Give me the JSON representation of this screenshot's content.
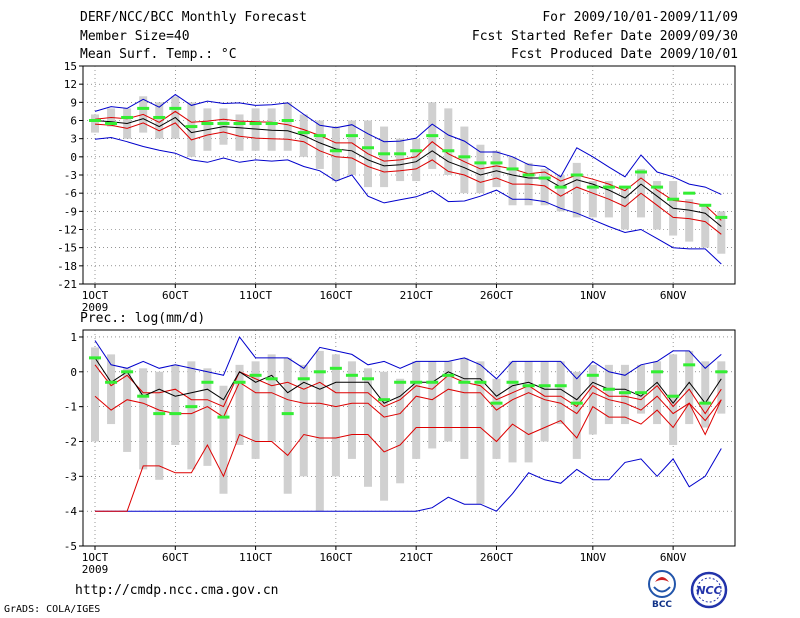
{
  "header": {
    "title": "DERF/NCC/BCC Monthly Forecast",
    "member_size": "Member Size=40",
    "variable": "Mean Surf. Temp.: °C",
    "period": "For 2009/10/01-2009/11/09",
    "fcst_started": "Fcst Started Refer Date 2009/09/30",
    "fcst_produced": "Fcst Produced Date 2009/10/01"
  },
  "footer": {
    "url": "http://cmdp.ncc.cma.gov.cn",
    "credit": "GrADS: COLA/IGES",
    "logo1_text": "BCC",
    "logo2_text": "NCC"
  },
  "colors": {
    "box": "#d0d0d0",
    "median": "#33ee33",
    "mean": "#000000",
    "inner": "#dd0000",
    "outer": "#0000cc",
    "grid": "#555555"
  },
  "chart_data": [
    {
      "type": "line",
      "title": "Mean Surf. Temp.: °C",
      "x": [
        1,
        2,
        3,
        4,
        5,
        6,
        7,
        8,
        9,
        10,
        11,
        12,
        13,
        14,
        15,
        16,
        17,
        18,
        19,
        20,
        21,
        22,
        23,
        24,
        25,
        26,
        27,
        28,
        29,
        30,
        31,
        32,
        33,
        34,
        35,
        36,
        37,
        38,
        39,
        40
      ],
      "x_ticks": [
        "1OCT",
        "6OCT",
        "11OCT",
        "16OCT",
        "21OCT",
        "26OCT",
        "1NOV",
        "6NOV"
      ],
      "x_tick_days": [
        1,
        6,
        11,
        16,
        21,
        26,
        32,
        37
      ],
      "x_sublabel": "2009",
      "ylim": [
        -21,
        15
      ],
      "y_ticks": [
        "15",
        "12",
        "9",
        "6",
        "3",
        "0",
        "-3",
        "-6",
        "-9",
        "-12",
        "-15",
        "-18",
        "-21"
      ],
      "series": [
        {
          "name": "box_high",
          "values": [
            7,
            8,
            8,
            10,
            9,
            10,
            9,
            8,
            8,
            7,
            8,
            8,
            9,
            7,
            6,
            5,
            6,
            6,
            5,
            3,
            3,
            9,
            8,
            5,
            2,
            1,
            0,
            -1,
            -2,
            -3,
            -1,
            -4,
            -4,
            -5,
            -2,
            -4,
            -4,
            -7,
            -8,
            -9
          ]
        },
        {
          "name": "box_low",
          "values": [
            4,
            5,
            3,
            4,
            3,
            3,
            0,
            1,
            2,
            1,
            1,
            1,
            1,
            0,
            -2,
            -4,
            -3,
            -5,
            -5,
            -4,
            -4,
            -2,
            -3,
            -6,
            -6,
            -5,
            -8,
            -8,
            -8,
            -9,
            -10,
            -10,
            -10,
            -12,
            -10,
            -12,
            -13,
            -14,
            -15,
            -16
          ]
        },
        {
          "name": "median",
          "values": [
            6,
            5.5,
            6.5,
            8,
            6.5,
            8,
            5,
            5.5,
            5.5,
            5.5,
            5.5,
            5.5,
            6,
            4,
            3.5,
            1,
            3.5,
            1.5,
            0.5,
            0.5,
            1,
            3.5,
            1,
            0,
            -1,
            -1,
            -2,
            -3,
            -3.5,
            -5,
            -3,
            -5,
            -5,
            -5,
            -2.5,
            -5,
            -7,
            -6,
            -8,
            -10
          ]
        },
        {
          "name": "mean",
          "values": [
            6,
            5.8,
            5.5,
            6.3,
            5,
            6.5,
            4,
            4.5,
            5,
            4.8,
            4.6,
            4.4,
            4.3,
            3.5,
            2.3,
            1.3,
            1,
            -0.5,
            -1.5,
            -1.3,
            -0.8,
            1,
            -0.8,
            -1.8,
            -3,
            -2.3,
            -3,
            -3.5,
            -3.5,
            -5,
            -3.8,
            -4.5,
            -5.5,
            -6.8,
            -4.5,
            -6.5,
            -8.5,
            -8.8,
            -9.3,
            -11.5
          ]
        },
        {
          "name": "upper_red",
          "values": [
            6.2,
            6.5,
            6.3,
            7,
            5.7,
            7.5,
            5.7,
            5.9,
            6.2,
            5.9,
            5.8,
            5.7,
            5.3,
            4.5,
            3.5,
            2.3,
            2.3,
            0.5,
            -0.7,
            -0.5,
            0,
            2.5,
            0.5,
            -0.8,
            -2,
            -1.5,
            -2,
            -2.8,
            -2.5,
            -4,
            -3,
            -3.7,
            -4.5,
            -5.6,
            -3.5,
            -5.5,
            -7.2,
            -7.5,
            -8,
            -10.5
          ]
        },
        {
          "name": "lower_red",
          "values": [
            5.4,
            5.2,
            4.7,
            5.6,
            4.3,
            5.6,
            2.8,
            3.6,
            4.1,
            3.4,
            3.1,
            3,
            2.9,
            2.5,
            1,
            0,
            -0.2,
            -1.6,
            -2.5,
            -2.3,
            -2,
            -0.5,
            -2.4,
            -3,
            -4.2,
            -3.5,
            -4.5,
            -4.5,
            -4.8,
            -6.5,
            -5,
            -6,
            -7,
            -8.2,
            -6,
            -8,
            -10,
            -10.2,
            -10.7,
            -12.8
          ]
        },
        {
          "name": "upper_blue",
          "values": [
            7.5,
            8.3,
            8,
            9.5,
            8.2,
            10.3,
            8.5,
            9.2,
            8.8,
            8.9,
            8.5,
            8.6,
            8.9,
            7,
            5.2,
            4.8,
            5.3,
            3.8,
            2.5,
            2.6,
            3.1,
            5.4,
            3.6,
            2.6,
            0.8,
            0.8,
            0,
            -1.3,
            -1.6,
            -3.3,
            1.5,
            0,
            -1.7,
            -3.3,
            0.3,
            -2.5,
            -3.3,
            -4.5,
            -5,
            -6.2
          ]
        },
        {
          "name": "lower_blue",
          "values": [
            2.9,
            3.2,
            2.5,
            1.7,
            1.1,
            0.6,
            -0.5,
            -0.9,
            -0.2,
            -0.9,
            -0.5,
            -0.7,
            -0.5,
            -1.6,
            -2.3,
            -4,
            -3,
            -6.5,
            -7.6,
            -7.1,
            -6.6,
            -5.6,
            -7.4,
            -7.3,
            -6.5,
            -5.5,
            -7,
            -7,
            -7.4,
            -8.5,
            -9.3,
            -10.4,
            -11.5,
            -12.5,
            -12,
            -13.5,
            -15,
            -15.2,
            -15.2,
            -17.7
          ]
        }
      ]
    },
    {
      "type": "line",
      "title": "Prec.: log(mm/d)",
      "x": [
        1,
        2,
        3,
        4,
        5,
        6,
        7,
        8,
        9,
        10,
        11,
        12,
        13,
        14,
        15,
        16,
        17,
        18,
        19,
        20,
        21,
        22,
        23,
        24,
        25,
        26,
        27,
        28,
        29,
        30,
        31,
        32,
        33,
        34,
        35,
        36,
        37,
        38,
        39,
        40
      ],
      "x_ticks": [
        "1OCT",
        "6OCT",
        "11OCT",
        "16OCT",
        "21OCT",
        "26OCT",
        "1NOV",
        "6NOV"
      ],
      "x_tick_days": [
        1,
        6,
        11,
        16,
        21,
        26,
        32,
        37
      ],
      "x_sublabel": "2009",
      "ylim": [
        -5,
        1.2
      ],
      "y_ticks": [
        "1",
        "0",
        "-1",
        "-2",
        "-3",
        "-4",
        "-5"
      ],
      "series": [
        {
          "name": "box_high",
          "values": [
            0.7,
            0.5,
            0.1,
            0.1,
            0,
            0.2,
            0.3,
            0.1,
            -0.4,
            0.2,
            0.3,
            0.5,
            0.4,
            0.2,
            0.6,
            0.5,
            0.3,
            0.1,
            0,
            -0.2,
            0.3,
            0.3,
            0.3,
            0.4,
            0.3,
            -0.2,
            0.3,
            0.3,
            0.3,
            0.3,
            0,
            0.2,
            0.2,
            0.2,
            0.2,
            0.3,
            0.5,
            0.6,
            0.3,
            0.3
          ]
        },
        {
          "name": "box_low",
          "values": [
            -2,
            -1.5,
            -2.3,
            -2.8,
            -3.1,
            -2.1,
            -2.8,
            -2.7,
            -3.5,
            -2.1,
            -2.5,
            -2,
            -3.5,
            -3,
            -4,
            -3,
            -2.5,
            -3.3,
            -3.7,
            -3.2,
            -2.5,
            -2.2,
            -2,
            -2.5,
            -3.8,
            -2.5,
            -2.6,
            -2.6,
            -2,
            -1.5,
            -2.5,
            -1.8,
            -1.5,
            -1.5,
            -1.2,
            -1.5,
            -2.1,
            -1.5,
            -1.6,
            -1.2
          ]
        },
        {
          "name": "median",
          "values": [
            0.4,
            -0.3,
            0,
            -0.7,
            -1.2,
            -1.2,
            -1,
            -0.3,
            -1.3,
            -0.3,
            -0.1,
            -0.2,
            -1.2,
            -0.2,
            0,
            0.1,
            -0.1,
            -0.2,
            -0.8,
            -0.3,
            -0.3,
            -0.3,
            -0.1,
            -0.3,
            -0.3,
            -0.9,
            -0.3,
            -0.4,
            -0.4,
            -0.4,
            -0.9,
            -0.1,
            -0.5,
            -0.6,
            -0.6,
            0,
            -0.7,
            0.2,
            -0.9,
            0
          ]
        },
        {
          "name": "mean",
          "values": [
            0.4,
            -0.3,
            0,
            -0.7,
            -0.5,
            -0.7,
            -0.6,
            -0.5,
            -0.8,
            0,
            -0.3,
            -0.1,
            -0.6,
            -0.3,
            -0.5,
            -0.3,
            -0.3,
            -0.3,
            -0.9,
            -0.7,
            -0.3,
            -0.3,
            0,
            -0.2,
            -0.2,
            -0.7,
            -0.4,
            -0.3,
            -0.5,
            -0.5,
            -0.8,
            -0.3,
            -0.5,
            -0.5,
            -0.7,
            -0.3,
            -0.9,
            -0.3,
            -0.9,
            -0.2
          ]
        },
        {
          "name": "upper_red",
          "values": [
            0.2,
            -0.4,
            -0.1,
            -0.6,
            -0.6,
            -0.5,
            -0.8,
            -0.8,
            -1,
            0,
            -0.2,
            -0.4,
            -0.3,
            -0.5,
            -0.3,
            -0.6,
            -0.6,
            -0.6,
            -1,
            -0.8,
            -0.4,
            -0.5,
            -0.1,
            -0.3,
            -0.4,
            -0.8,
            -0.6,
            -0.4,
            -0.7,
            -0.7,
            -1,
            -0.4,
            -0.7,
            -0.7,
            -0.8,
            -0.4,
            -1,
            -0.5,
            -1.2,
            -0.5
          ]
        },
        {
          "name": "lower_red",
          "values": [
            -0.7,
            -1.1,
            -0.8,
            -0.9,
            -1.1,
            -1.2,
            -1.2,
            -1,
            -1.3,
            -0.3,
            -0.6,
            -0.6,
            -0.8,
            -0.9,
            -0.9,
            -1,
            -0.9,
            -0.9,
            -1.3,
            -1.2,
            -0.7,
            -0.8,
            -0.5,
            -0.6,
            -0.6,
            -1.1,
            -0.8,
            -0.6,
            -0.8,
            -0.9,
            -1.2,
            -0.6,
            -0.8,
            -0.9,
            -1.1,
            -0.7,
            -1.2,
            -0.9,
            -1.4,
            -0.8
          ]
        },
        {
          "name": "lower_red_2",
          "values": [
            -4,
            -4,
            -4,
            -2.7,
            -2.7,
            -2.9,
            -2.9,
            -2.1,
            -3,
            -1.8,
            -2,
            -2,
            -2.4,
            -1.8,
            -1.9,
            -1.9,
            -1.8,
            -1.8,
            -2.3,
            -2.1,
            -1.6,
            -1.6,
            -1.6,
            -1.6,
            -1.6,
            -2,
            -1.5,
            -1.8,
            -1.6,
            -1.4,
            -1.9,
            -1,
            -1.3,
            -1.3,
            -1.5,
            -1.1,
            -1.6,
            -0.9,
            -1.8,
            -0.8
          ]
        },
        {
          "name": "upper_blue",
          "values": [
            0.9,
            0.2,
            0.1,
            0.3,
            0.1,
            0.2,
            0.1,
            0,
            -0.1,
            1,
            0.4,
            0.4,
            0.4,
            0.1,
            0.7,
            0.6,
            0.5,
            0.2,
            0.3,
            0.1,
            0.3,
            0.3,
            0.3,
            0.4,
            0.2,
            -0.2,
            0.3,
            0.3,
            0.3,
            0.3,
            -0.2,
            0.3,
            0,
            -0.1,
            0.2,
            0.3,
            0.6,
            0.6,
            0.1,
            0.5
          ]
        },
        {
          "name": "lower_blue",
          "values": [
            -4,
            -4,
            -4,
            -4,
            -4,
            -4,
            -4,
            -4,
            -4,
            -4,
            -4,
            -4,
            -4,
            -4,
            -4,
            -4,
            -4,
            -4,
            -4,
            -4,
            -4,
            -3.9,
            -3.6,
            -3.8,
            -3.8,
            -4,
            -3.5,
            -2.9,
            -3.1,
            -3.2,
            -2.8,
            -3.1,
            -3.1,
            -2.6,
            -2.5,
            -3,
            -2.5,
            -3.3,
            -3,
            -2.2
          ]
        }
      ]
    }
  ]
}
